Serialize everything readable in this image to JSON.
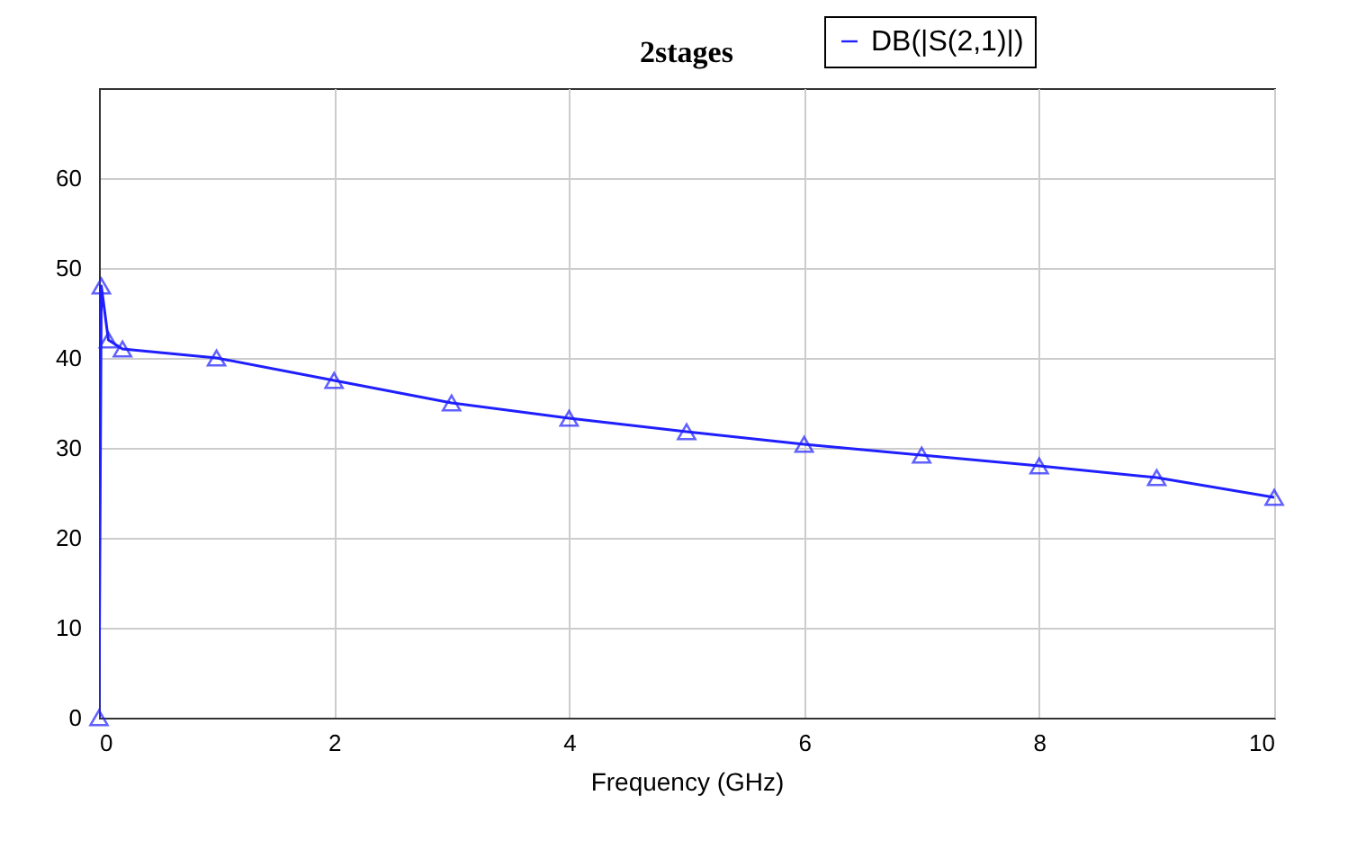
{
  "chart_data": {
    "type": "line",
    "title": "2stages",
    "xlabel": "Frequency (GHz)",
    "xlim": [
      0,
      10
    ],
    "xticks": [
      {
        "value": 0,
        "label": "0"
      },
      {
        "value": 2,
        "label": "2"
      },
      {
        "value": 4,
        "label": "4"
      },
      {
        "value": 6,
        "label": "6"
      },
      {
        "value": 8,
        "label": "8"
      },
      {
        "value": 10,
        "label": "10"
      }
    ],
    "ylim": [
      0,
      70
    ],
    "yticks": [
      0,
      10,
      20,
      30,
      40,
      50,
      60
    ],
    "grid": true,
    "legend": "top right",
    "marker": "triangle",
    "line_style": "solid",
    "series": [
      {
        "name": "DB(|S(2,1)|)",
        "color": "#1f1fff",
        "x": [
          0,
          0.02,
          0.08,
          0.2,
          1,
          2,
          3,
          4,
          5,
          6,
          7,
          8,
          9,
          10
        ],
        "values": [
          0,
          48,
          42,
          41,
          40,
          37.5,
          35,
          33.3,
          31.8,
          30.4,
          29.2,
          28,
          26.7,
          24.5
        ]
      }
    ]
  }
}
